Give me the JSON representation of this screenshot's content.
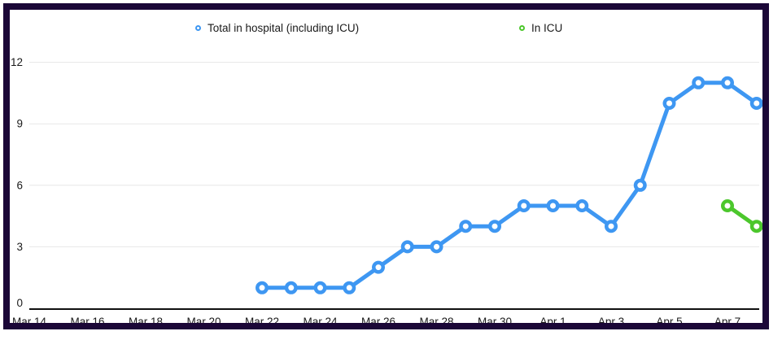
{
  "chart_data": {
    "type": "line",
    "title": "",
    "x_tick_labels": [
      "Mar 14",
      "Mar 16",
      "Mar 18",
      "Mar 20",
      "Mar 22",
      "Mar 24",
      "Mar 26",
      "Mar 28",
      "Mar 30",
      "Apr 1",
      "Apr 3",
      "Apr 5",
      "Apr 7"
    ],
    "y_ticks": [
      0,
      3,
      6,
      9,
      12
    ],
    "ylim": [
      0,
      12
    ],
    "x_domain": [
      "Mar 14",
      "Apr 8"
    ],
    "grid": "horizontal",
    "legend_position": "top",
    "series": [
      {
        "name": "Total in hospital (including ICU)",
        "color": "#3e97f2",
        "points": [
          {
            "date": "Mar 22",
            "value": 1
          },
          {
            "date": "Mar 23",
            "value": 1
          },
          {
            "date": "Mar 24",
            "value": 1
          },
          {
            "date": "Mar 25",
            "value": 1
          },
          {
            "date": "Mar 26",
            "value": 2
          },
          {
            "date": "Mar 27",
            "value": 3
          },
          {
            "date": "Mar 28",
            "value": 3
          },
          {
            "date": "Mar 29",
            "value": 4
          },
          {
            "date": "Mar 30",
            "value": 4
          },
          {
            "date": "Mar 31",
            "value": 5
          },
          {
            "date": "Apr 1",
            "value": 5
          },
          {
            "date": "Apr 2",
            "value": 5
          },
          {
            "date": "Apr 3",
            "value": 4
          },
          {
            "date": "Apr 4",
            "value": 6
          },
          {
            "date": "Apr 5",
            "value": 10
          },
          {
            "date": "Apr 6",
            "value": 11
          },
          {
            "date": "Apr 7",
            "value": 11
          },
          {
            "date": "Apr 8",
            "value": 10
          }
        ]
      },
      {
        "name": "In ICU",
        "color": "#4cc72c",
        "points": [
          {
            "date": "Apr 7",
            "value": 5
          },
          {
            "date": "Apr 8",
            "value": 4
          }
        ]
      }
    ]
  },
  "colors": {
    "frame_border": "#1b0737",
    "axis_line": "#111111",
    "grid_line": "#e7e7e7",
    "tick_text": "#1a1a1a",
    "background": "#ffffff"
  }
}
